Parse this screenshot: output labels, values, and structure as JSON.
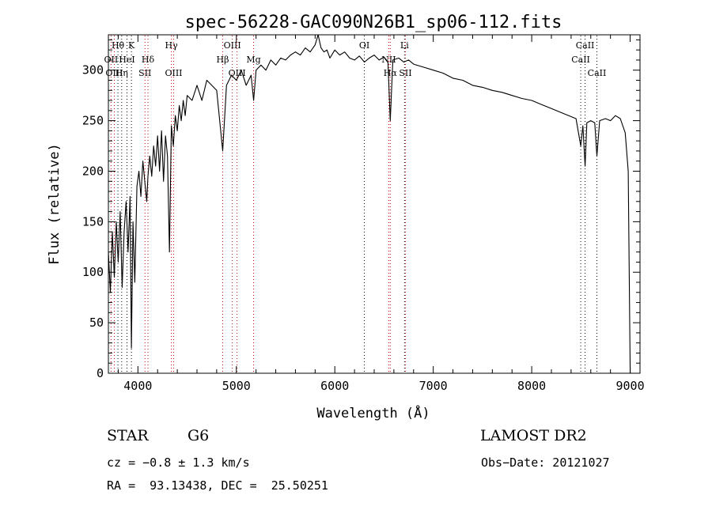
{
  "chart_data": {
    "type": "line",
    "title": "spec-56228-GAC090N26B1_sp06-112.fits",
    "xlabel": "Wavelength (Å)",
    "ylabel": "Flux (relative)",
    "xlim": [
      3700,
      9100
    ],
    "ylim": [
      0,
      335
    ],
    "x_ticks": [
      "4000",
      "5000",
      "6000",
      "7000",
      "8000",
      "9000"
    ],
    "y_ticks": [
      "0",
      "50",
      "100",
      "150",
      "200",
      "250",
      "300"
    ],
    "grid": false,
    "series": [
      {
        "x": [
          3700,
          3720,
          3740,
          3760,
          3780,
          3800,
          3820,
          3840,
          3860,
          3880,
          3900,
          3920,
          3934,
          3950,
          3968,
          3990,
          4010,
          4030,
          4050,
          4070,
          4090,
          4102,
          4120,
          4140,
          4160,
          4180,
          4200,
          4220,
          4240,
          4260,
          4280,
          4300,
          4320,
          4340,
          4360,
          4380,
          4400,
          4420,
          4440,
          4460,
          4480,
          4500,
          4550,
          4600,
          4650,
          4700,
          4750,
          4800,
          4861,
          4900,
          4950,
          5000,
          5050,
          5100,
          5150,
          5175,
          5200,
          5250,
          5300,
          5350,
          5400,
          5450,
          5500,
          5550,
          5600,
          5650,
          5700,
          5750,
          5800,
          5830,
          5860,
          5890,
          5920,
          5950,
          6000,
          6050,
          6100,
          6150,
          6200,
          6250,
          6300,
          6350,
          6400,
          6450,
          6500,
          6540,
          6563,
          6590,
          6650,
          6700,
          6750,
          6800,
          6900,
          7000,
          7100,
          7200,
          7300,
          7400,
          7500,
          7600,
          7700,
          7800,
          7900,
          8000,
          8100,
          8200,
          8300,
          8400,
          8450,
          8498,
          8520,
          8542,
          8560,
          8600,
          8640,
          8662,
          8690,
          8750,
          8800,
          8850,
          8900,
          8950,
          8980,
          9000
        ],
        "y": [
          120,
          80,
          140,
          95,
          150,
          110,
          160,
          85,
          140,
          170,
          120,
          175,
          25,
          150,
          90,
          185,
          200,
          175,
          210,
          190,
          170,
          195,
          215,
          195,
          225,
          205,
          235,
          200,
          240,
          190,
          235,
          215,
          120,
          245,
          225,
          255,
          240,
          265,
          250,
          270,
          255,
          275,
          270,
          285,
          270,
          290,
          285,
          280,
          220,
          285,
          295,
          290,
          300,
          285,
          295,
          270,
          300,
          305,
          300,
          310,
          305,
          312,
          310,
          315,
          318,
          315,
          322,
          318,
          325,
          335,
          322,
          318,
          320,
          312,
          320,
          315,
          318,
          312,
          310,
          314,
          308,
          312,
          315,
          310,
          313,
          308,
          250,
          310,
          312,
          308,
          310,
          306,
          303,
          300,
          297,
          292,
          290,
          285,
          283,
          280,
          278,
          275,
          272,
          270,
          266,
          262,
          258,
          254,
          252,
          225,
          245,
          205,
          248,
          250,
          248,
          215,
          250,
          252,
          250,
          255,
          252,
          238,
          200,
          0
        ]
      }
    ],
    "line_markers": [
      {
        "label": "Hθ",
        "x": 3797,
        "row": 1,
        "color": "#000000"
      },
      {
        "label": "K",
        "x": 3934,
        "row": 1,
        "color": "#000000"
      },
      {
        "label": "Hγ",
        "x": 4340,
        "row": 1,
        "color": "#000000"
      },
      {
        "label": "OIII",
        "x": 4959,
        "row": 1,
        "color": "#000000"
      },
      {
        "label": "OI",
        "x": 6300,
        "row": 1,
        "color": "#000000"
      },
      {
        "label": "Li",
        "x": 6708,
        "row": 1,
        "color": "#000000"
      },
      {
        "label": "CaII",
        "x": 8542,
        "row": 1,
        "color": "#000000"
      },
      {
        "label": "OII",
        "x": 3727,
        "row": 2,
        "color": "#000000"
      },
      {
        "label": "HeI",
        "x": 3889,
        "row": 2,
        "color": "#000000"
      },
      {
        "label": "Hδ",
        "x": 4102,
        "row": 2,
        "color": "#000000"
      },
      {
        "label": "Hβ",
        "x": 4861,
        "row": 2,
        "color": "#000000"
      },
      {
        "label": "Mg",
        "x": 5175,
        "row": 2,
        "color": "#000000"
      },
      {
        "label": "NII",
        "x": 6548,
        "row": 2,
        "color": "#000000"
      },
      {
        "label": "CaII",
        "x": 8498,
        "row": 2,
        "color": "#000000"
      },
      {
        "label": "OIII",
        "x": 3760,
        "row": 3,
        "color": "#000000"
      },
      {
        "label": "Hη",
        "x": 3835,
        "row": 3,
        "color": "#000000"
      },
      {
        "label": "SII",
        "x": 4072,
        "row": 3,
        "color": "#000000"
      },
      {
        "label": "OIII",
        "x": 4363,
        "row": 3,
        "color": "#000000"
      },
      {
        "label": "OIII",
        "x": 5007,
        "row": 3,
        "color": "#000000"
      },
      {
        "label": "Hα",
        "x": 6563,
        "row": 3,
        "color": "#000000"
      },
      {
        "label": "SII",
        "x": 6717,
        "row": 3,
        "color": "#000000"
      },
      {
        "label": "CaII",
        "x": 8662,
        "row": 3,
        "color": "#000000"
      }
    ],
    "marker_colors": {
      "emission": "#c00000",
      "absorption": "#000000"
    }
  },
  "info": {
    "object_class": "STAR",
    "subclass": "G6",
    "survey": "LAMOST DR2",
    "cz": "cz = −0.8 ± 1.3 km/s",
    "obs_date": "Obs−Date: 20121027",
    "coords": "RA =  93.13438, DEC =  25.50251"
  }
}
